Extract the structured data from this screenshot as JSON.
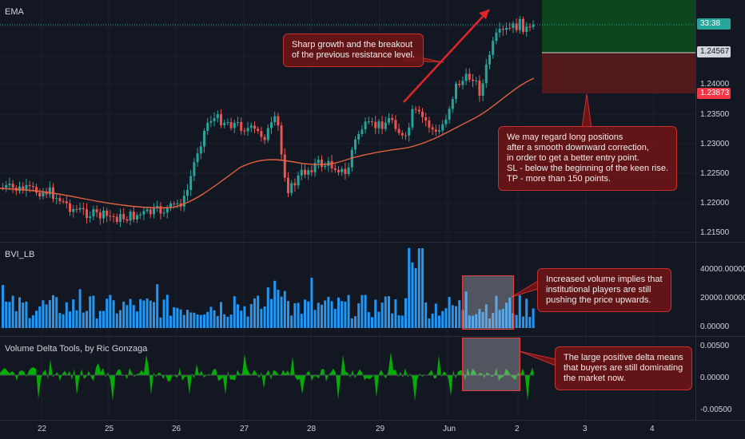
{
  "panes": {
    "price": {
      "label": "EMA",
      "axis_ticks": [
        "1.24000",
        "1.23500",
        "1.23000",
        "1.22500",
        "1.22000",
        "1.21500"
      ],
      "tags": {
        "countdown": "33:38",
        "tp_price": "1.24567",
        "sl_price": "1.23873"
      }
    },
    "volume": {
      "label": "BVI_LB",
      "axis_ticks": [
        "40000.00000",
        "20000.00000",
        "0.00000"
      ]
    },
    "delta": {
      "label": "Volume Delta Tools, by Ric Gonzaga",
      "axis_ticks": [
        "0.00500",
        "0.00000",
        "-0.00500"
      ]
    }
  },
  "time_axis": [
    "22",
    "25",
    "26",
    "27",
    "28",
    "29",
    "Jun",
    "2",
    "3",
    "4"
  ],
  "callouts": {
    "breakout": [
      "Sharp growth and the breakout",
      "of the previous resistance level."
    ],
    "long": [
      "We may regard long positions",
      "after a smooth downward correction,",
      "in order to get a better entry point.",
      "SL - below the beginning of the keen rise.",
      "TP - more than 150 points."
    ],
    "volume": [
      "Increased volume implies that",
      "institutional players are still",
      "pushing the price upwards."
    ],
    "delta": [
      "The large positive delta means",
      "that buyers are still dominating",
      "the market now."
    ]
  },
  "colors": {
    "background": "#131722",
    "up": "#26a69a",
    "down": "#ef5350",
    "ema": "#e5613f",
    "volume": "#2196f3",
    "delta_pos": "#00c800",
    "delta_neg": "#e01e1e",
    "tp_zone": "#0d4b1c",
    "sl_zone": "#5a1a1d",
    "callout": "#6e1416"
  }
}
